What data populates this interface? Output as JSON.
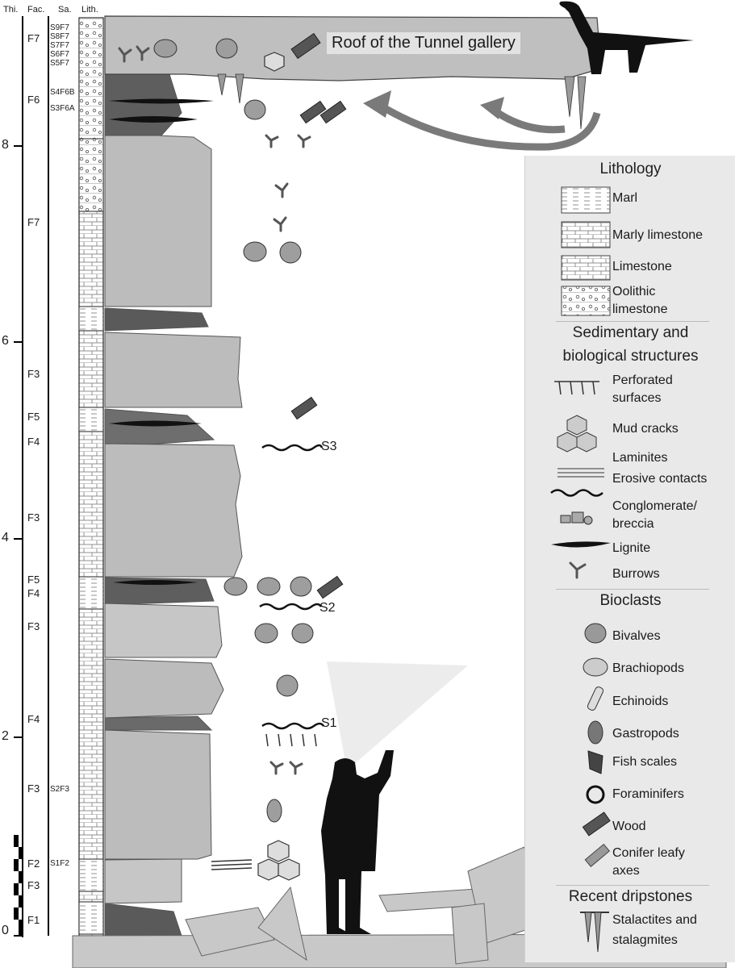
{
  "headers": {
    "thickness": "Thi.",
    "facies": "Fac.",
    "samples": "Sa.",
    "lithology": "Lith."
  },
  "thickness_axis": {
    "labels": [
      "0",
      "2",
      "4",
      "6",
      "8"
    ],
    "unit": "m"
  },
  "facies_labels": [
    "F7",
    "F6",
    "F7",
    "F3",
    "F5",
    "F4",
    "F3",
    "F5",
    "F4",
    "F3",
    "F4",
    "F3",
    "F2",
    "F3",
    "F1"
  ],
  "sample_labels": [
    "S9F7",
    "S8F7",
    "S7F7",
    "S6F7",
    "S5F7",
    "S4F6B",
    "S3F6A",
    "S2F3",
    "S1F2"
  ],
  "surface_labels": {
    "s3": "S3",
    "s2": "S2",
    "s1": "S1"
  },
  "roof_label": "Roof of the Tunnel gallery",
  "legend": {
    "lithology_title": "Lithology",
    "lithology": {
      "marl": "Marl",
      "marly_limestone": "Marly limestone",
      "limestone": "Limestone",
      "oolitic_1": "Oolithic",
      "oolitic_2": "limestone"
    },
    "structures_title_1": "Sedimentary and",
    "structures_title_2": "biological structures",
    "structures": {
      "perforated_1": "Perforated",
      "perforated_2": "surfaces",
      "mud_cracks": "Mud cracks",
      "laminites": "Laminites",
      "erosive": "Erosive contacts",
      "conglomerate_1": "Conglomerate/",
      "conglomerate_2": "breccia",
      "lignite": "Lignite",
      "burrows": "Burrows"
    },
    "bioclasts_title": "Bioclasts",
    "bioclasts": {
      "bivalves": "Bivalves",
      "brachiopods": "Brachiopods",
      "echinoids": "Echinoids",
      "gastropods": "Gastropods",
      "fish_scales": "Fish scales",
      "foraminifers": "Foraminifers",
      "wood": "Wood",
      "conifer_1": "Conifer leafy",
      "conifer_2": "axes"
    },
    "dripstones_title": "Recent dripstones",
    "dripstones": {
      "stal_1": "Stalactites and",
      "stal_2": "stalagmites"
    }
  },
  "colors": {
    "rock": "#bdbdbd",
    "dark_rock": "#5a5a5a",
    "legend_bg": "#e9e9e9"
  }
}
